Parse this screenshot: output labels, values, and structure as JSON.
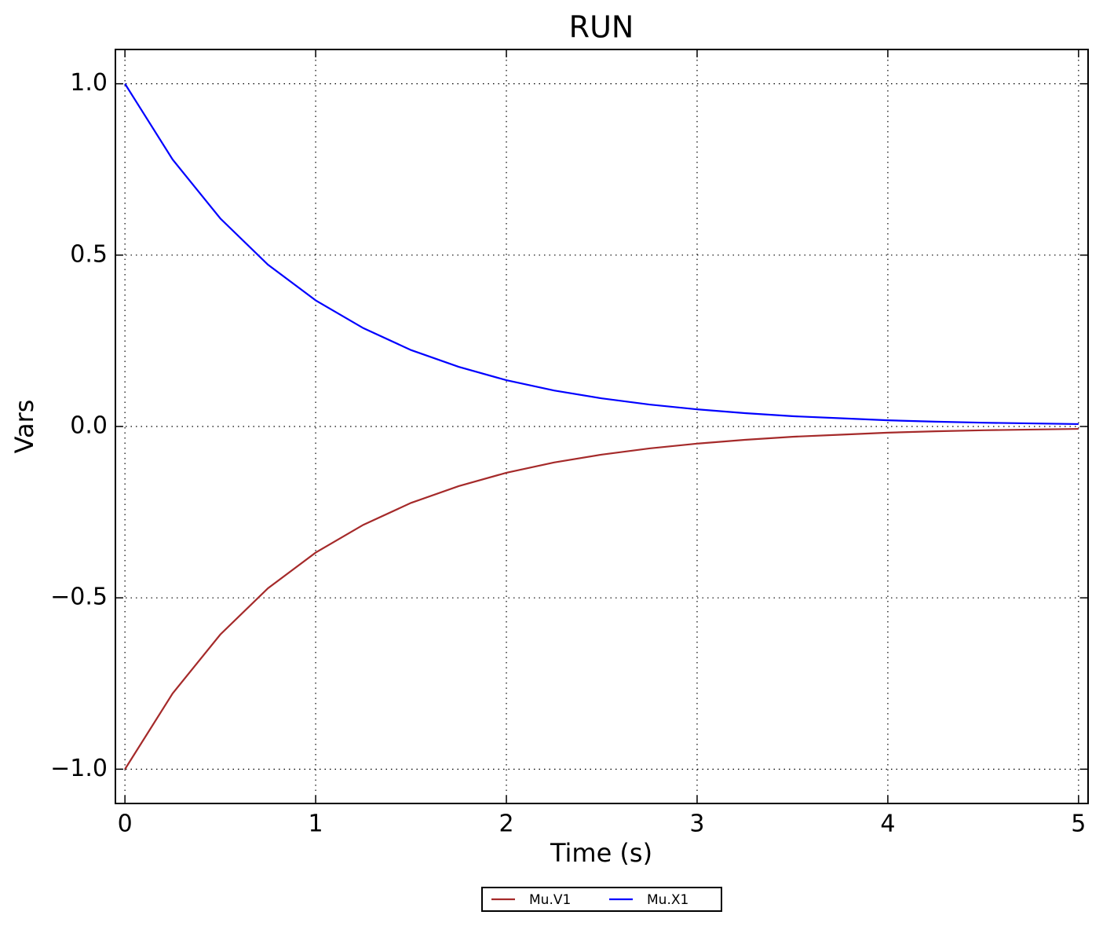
{
  "chart_data": {
    "type": "line",
    "title": "RUN",
    "x_label": "Time (s)",
    "y_label": "Vars",
    "x": [
      0,
      0.25,
      0.5,
      0.75,
      1,
      1.25,
      1.5,
      1.75,
      2,
      2.25,
      2.5,
      2.75,
      3,
      3.25,
      3.5,
      3.75,
      4,
      4.25,
      4.5,
      4.75,
      5
    ],
    "series": [
      {
        "name": "Mu.V1",
        "color": "#a52a2a",
        "values": [
          -1,
          -0.779,
          -0.607,
          -0.472,
          -0.368,
          -0.287,
          -0.223,
          -0.174,
          -0.135,
          -0.105,
          -0.082,
          -0.064,
          -0.05,
          -0.039,
          -0.03,
          -0.024,
          -0.018,
          -0.014,
          -0.011,
          -0.009,
          -0.007
        ]
      },
      {
        "name": "Mu.X1",
        "color": "#0000ff",
        "values": [
          1,
          0.779,
          0.607,
          0.472,
          0.368,
          0.287,
          0.223,
          0.174,
          0.135,
          0.105,
          0.082,
          0.064,
          0.05,
          0.039,
          0.03,
          0.024,
          0.018,
          0.014,
          0.011,
          0.009,
          0.007
        ]
      }
    ],
    "xlim": [
      -0.05,
      5.05
    ],
    "ylim": [
      -1.1,
      1.1
    ],
    "xticks": [
      0,
      1,
      2,
      3,
      4,
      5
    ],
    "yticks": [
      {
        "value": 1,
        "label": "1.0"
      },
      {
        "value": 0.5,
        "label": "0.5"
      },
      {
        "value": 0,
        "label": "0.0"
      },
      {
        "value": -0.5,
        "label": "−0.5"
      },
      {
        "value": -1,
        "label": "−1.0"
      }
    ],
    "grid": true,
    "legend": "lower center"
  }
}
